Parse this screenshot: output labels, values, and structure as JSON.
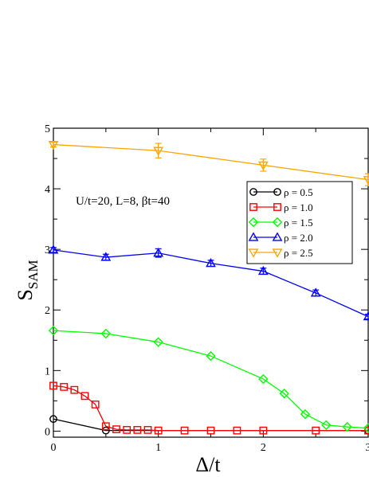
{
  "chart_data": {
    "type": "line",
    "xlabel": "Δ/t",
    "ylabel_main": "S",
    "ylabel_sub": "SAM",
    "xlim": [
      0,
      3
    ],
    "ylim": [
      -0.1,
      5
    ],
    "xticks": [
      0,
      1,
      2,
      3
    ],
    "yticks": [
      0,
      1,
      2,
      3,
      4,
      5
    ],
    "annotation": "U/t=20, L=8, βt=40",
    "legend_position": "right",
    "series": [
      {
        "name": "ρ = 0.5",
        "color": "#000000",
        "marker": "circle",
        "x": [
          0,
          0.5,
          3
        ],
        "y": [
          0.2,
          0.01,
          0.01
        ],
        "err": [
          0,
          0,
          0
        ]
      },
      {
        "name": "ρ = 1.0",
        "color": "#ff0000",
        "marker": "square",
        "x": [
          0,
          0.1,
          0.2,
          0.3,
          0.4,
          0.5,
          0.6,
          0.7,
          0.8,
          0.9,
          1.0,
          1.25,
          1.5,
          1.75,
          2.0,
          2.5,
          3.0
        ],
        "y": [
          0.75,
          0.73,
          0.68,
          0.58,
          0.44,
          0.08,
          0.03,
          0.02,
          0.02,
          0.02,
          0.01,
          0.01,
          0.01,
          0.01,
          0.01,
          0.01,
          0.01
        ],
        "err": [
          0,
          0,
          0,
          0,
          0,
          0,
          0,
          0,
          0,
          0,
          0,
          0,
          0,
          0,
          0,
          0,
          0
        ]
      },
      {
        "name": "ρ = 1.5",
        "color": "#00ff00",
        "marker": "diamond",
        "x": [
          0,
          0.5,
          1.0,
          1.5,
          2.0,
          2.2,
          2.4,
          2.6,
          2.8,
          3.0
        ],
        "y": [
          1.66,
          1.61,
          1.47,
          1.24,
          0.86,
          0.62,
          0.28,
          0.1,
          0.07,
          0.05
        ],
        "err": [
          0,
          0,
          0,
          0,
          0,
          0,
          0,
          0,
          0,
          0
        ]
      },
      {
        "name": "ρ = 2.0",
        "color": "#0000ff",
        "marker": "triangle-up",
        "x": [
          0,
          0.5,
          1.0,
          1.5,
          2.0,
          2.5,
          3.0
        ],
        "y": [
          2.99,
          2.87,
          2.94,
          2.77,
          2.64,
          2.28,
          1.89
        ],
        "err": [
          0.04,
          0.05,
          0.07,
          0.05,
          0.05,
          0.05,
          0.04
        ]
      },
      {
        "name": "ρ = 2.5",
        "color": "#ffa500",
        "marker": "triangle-down",
        "x": [
          0,
          1.0,
          2.0,
          3.0
        ],
        "y": [
          4.73,
          4.63,
          4.39,
          4.15
        ],
        "err": [
          0.04,
          0.12,
          0.1,
          0.1
        ]
      }
    ]
  }
}
